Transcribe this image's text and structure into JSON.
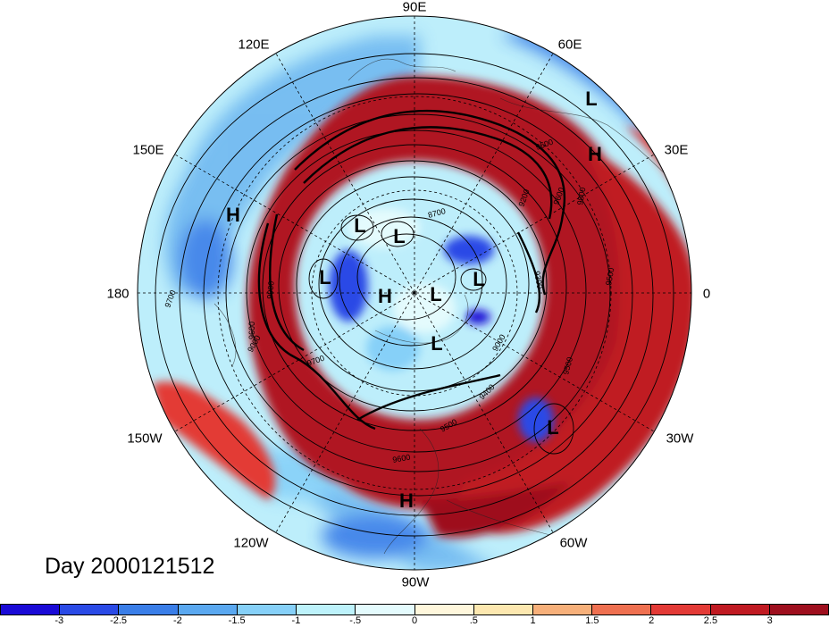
{
  "title": "Day 2000121512",
  "projection": "north-polar-stereographic",
  "longitude_labels": [
    "90E",
    "60E",
    "30E",
    "0",
    "30W",
    "60W",
    "90W",
    "120W",
    "150W",
    "180",
    "150E",
    "120E"
  ],
  "contour_labels": [
    "8700",
    "9000",
    "9000",
    "9200",
    "9300",
    "9400",
    "9500",
    "9500",
    "9500",
    "9600",
    "9600",
    "9600",
    "9600",
    "9700",
    "9700",
    "9800",
    "9900"
  ],
  "centers": [
    {
      "type": "L"
    },
    {
      "type": "H"
    },
    {
      "type": "H"
    },
    {
      "type": "L"
    },
    {
      "type": "L"
    },
    {
      "type": "L"
    },
    {
      "type": "L"
    },
    {
      "type": "L"
    },
    {
      "type": "H"
    },
    {
      "type": "L"
    },
    {
      "type": "L"
    },
    {
      "type": "L"
    },
    {
      "type": "H"
    }
  ],
  "colorbar": {
    "colors": [
      "#1a0ad6",
      "#2a4ae6",
      "#3a7ee8",
      "#5aa8f0",
      "#86d0f8",
      "#bdf2fb",
      "#e4fbfd",
      "#fff7dc",
      "#fde8b0",
      "#f7b07a",
      "#ef7050",
      "#e33a36",
      "#c01a22",
      "#9e0f1e"
    ],
    "labels": [
      "-3",
      "-2.5",
      "-2",
      "-1.5",
      "-1",
      "-.5",
      "0",
      ".5",
      "1",
      "1.5",
      "2",
      "2.5",
      "3"
    ]
  }
}
